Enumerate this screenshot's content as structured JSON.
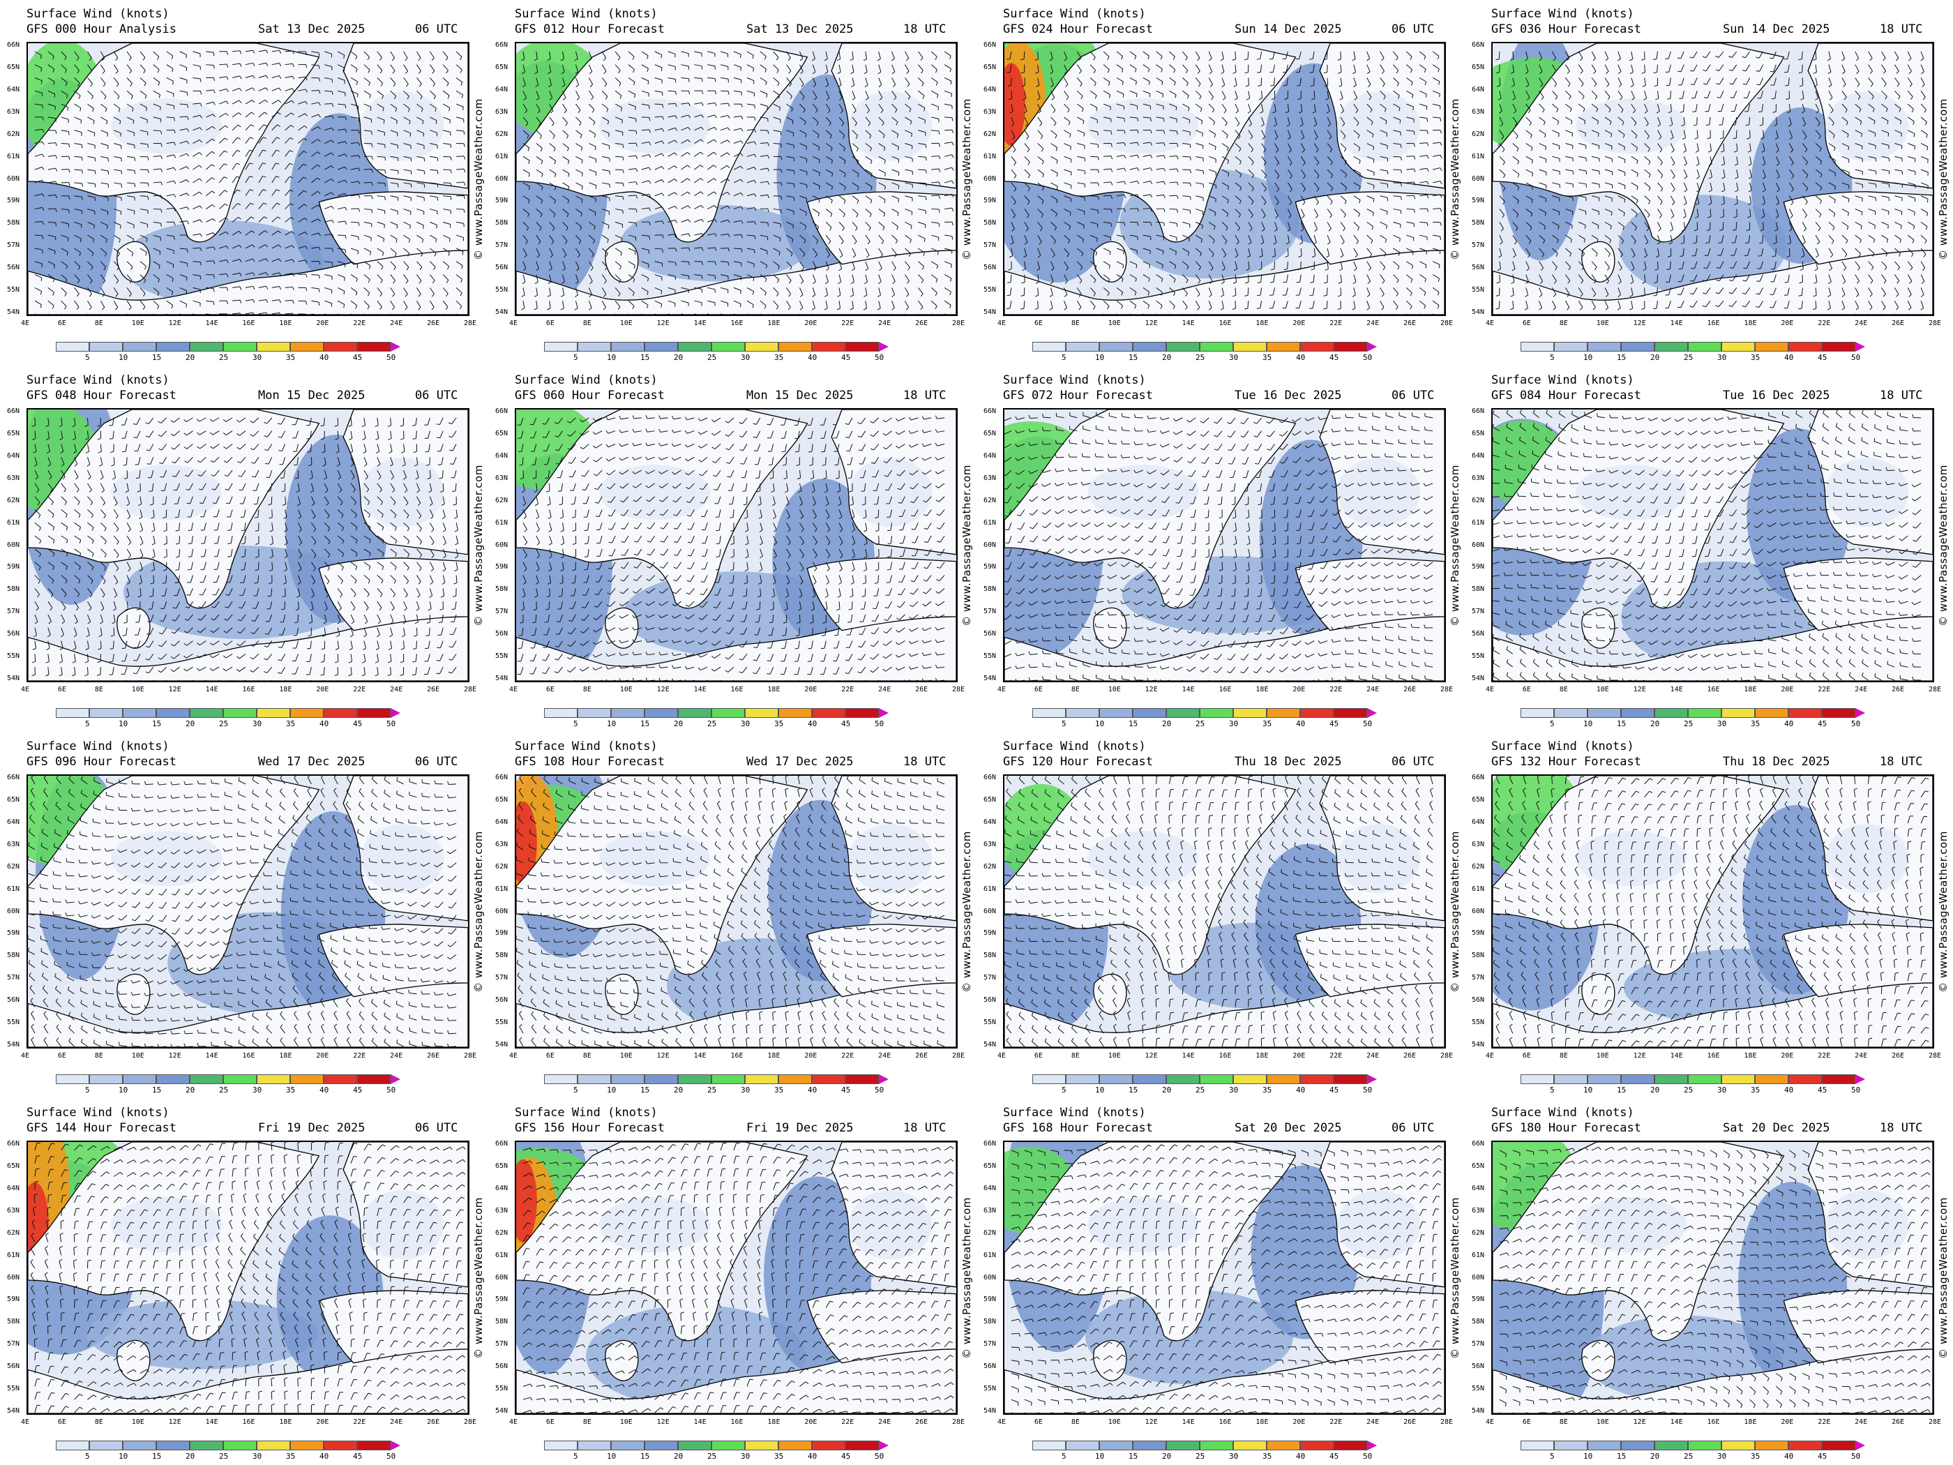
{
  "header_line1": "Surface Wind (knots)",
  "credit": "© www.PassageWeather.com",
  "colorbar": {
    "labels": [
      "5",
      "10",
      "15",
      "20",
      "25",
      "30",
      "35",
      "40",
      "45",
      "50"
    ],
    "colors": [
      "#ffffff",
      "#dfe8f5",
      "#bccde9",
      "#97b0dc",
      "#7896cf",
      "#4fb86e",
      "#5fdc5a",
      "#f0e040",
      "#f39a1c",
      "#e4342a",
      "#c8101a",
      "#d312b4"
    ]
  },
  "x_ticks": [
    "4E",
    "6E",
    "8E",
    "10E",
    "12E",
    "14E",
    "16E",
    "18E",
    "20E",
    "22E",
    "24E",
    "26E",
    "28E"
  ],
  "y_ticks": [
    "66N",
    "65N",
    "64N",
    "63N",
    "62N",
    "61N",
    "60N",
    "59N",
    "58N",
    "57N",
    "56N",
    "55N",
    "54N"
  ],
  "panels": [
    {
      "line2": "GFS 000 Hour Analysis",
      "date": "Sat 13 Dec 2025",
      "utc": "06 UTC"
    },
    {
      "line2": "GFS 012 Hour Forecast",
      "date": "Sat 13 Dec 2025",
      "utc": "18 UTC"
    },
    {
      "line2": "GFS 024 Hour Forecast",
      "date": "Sun 14 Dec 2025",
      "utc": "06 UTC"
    },
    {
      "line2": "GFS 036 Hour Forecast",
      "date": "Sun 14 Dec 2025",
      "utc": "18 UTC"
    },
    {
      "line2": "GFS 048 Hour Forecast",
      "date": "Mon 15 Dec 2025",
      "utc": "06 UTC"
    },
    {
      "line2": "GFS 060 Hour Forecast",
      "date": "Mon 15 Dec 2025",
      "utc": "18 UTC"
    },
    {
      "line2": "GFS 072 Hour Forecast",
      "date": "Tue 16 Dec 2025",
      "utc": "06 UTC"
    },
    {
      "line2": "GFS 084 Hour Forecast",
      "date": "Tue 16 Dec 2025",
      "utc": "18 UTC"
    },
    {
      "line2": "GFS 096 Hour Forecast",
      "date": "Wed 17 Dec 2025",
      "utc": "06 UTC"
    },
    {
      "line2": "GFS 108 Hour Forecast",
      "date": "Wed 17 Dec 2025",
      "utc": "18 UTC"
    },
    {
      "line2": "GFS 120 Hour Forecast",
      "date": "Thu 18 Dec 2025",
      "utc": "06 UTC"
    },
    {
      "line2": "GFS 132 Hour Forecast",
      "date": "Thu 18 Dec 2025",
      "utc": "18 UTC"
    },
    {
      "line2": "GFS 144 Hour Forecast",
      "date": "Fri 19 Dec 2025",
      "utc": "06 UTC"
    },
    {
      "line2": "GFS 156 Hour Forecast",
      "date": "Fri 19 Dec 2025",
      "utc": "18 UTC"
    },
    {
      "line2": "GFS 168 Hour Forecast",
      "date": "Sat 20 Dec 2025",
      "utc": "06 UTC"
    },
    {
      "line2": "GFS 180 Hour Forecast",
      "date": "Sat 20 Dec 2025",
      "utc": "18 UTC"
    }
  ]
}
